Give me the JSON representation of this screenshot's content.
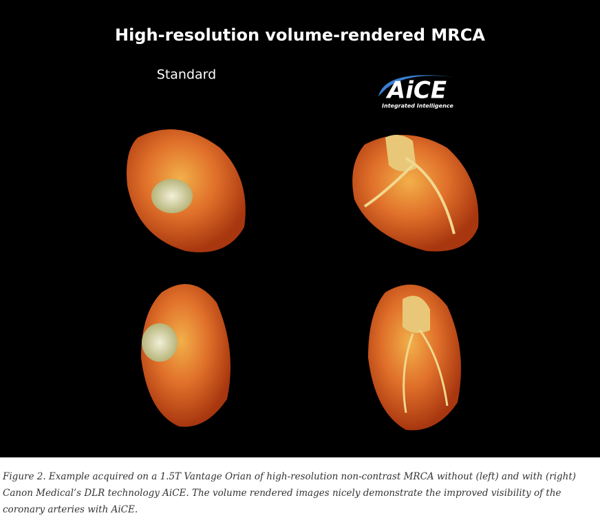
{
  "figure": {
    "title": "High-resolution volume-rendered MRCA",
    "left_label": "Standard",
    "logo": {
      "name": "AiCE",
      "tagline": "Integrated Intelligence"
    }
  },
  "caption": {
    "lines": [
      "Figure 2. Example acquired on a 1.5T Vantage Orian of high-resolution non-contrast MRCA without (left) and with (right)",
      "Canon Medical’s DLR technology AiCE. The volume rendered images nicely demonstrate the improved visibility of the",
      "coronary arteries with AiCE."
    ]
  }
}
